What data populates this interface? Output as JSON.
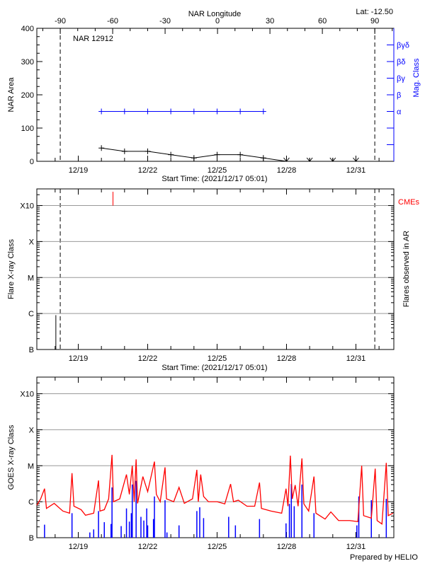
{
  "chart_data": [
    {
      "type": "line",
      "title": "NAR 12912",
      "header_right": "Lat: -12.50",
      "top_xlabel": "NAR Longitude",
      "top_xticks": [
        -90,
        -60,
        -30,
        0,
        30,
        60,
        90
      ],
      "top_xtick_labels": [
        "-90",
        "-60",
        "-30",
        "0",
        "30",
        "60",
        "90"
      ],
      "top_xlim": [
        -103.4,
        100.9
      ],
      "limb_longitudes": [
        -90,
        90
      ],
      "xlabel": "Start Time: (2021/12/17 05:01)",
      "xlim": [
        "2021-12-17T05:01",
        "2022-01-01T15:20"
      ],
      "xticks": [
        "2021-12-19T00:00",
        "2021-12-22T00:00",
        "2021-12-25T00:00",
        "2021-12-28T00:00",
        "2021-12-31T00:00"
      ],
      "xtick_labels": [
        "12/19",
        "12/22",
        "12/25",
        "12/28",
        "12/31"
      ],
      "ylabel": "NAR Area",
      "ylim": [
        0,
        400
      ],
      "yticks": [
        0,
        100,
        200,
        300,
        400
      ],
      "ytick_labels": [
        "0",
        "100",
        "200",
        "300",
        "400"
      ],
      "right_ylabel": "Mag. Class",
      "mag_class_labels": [
        "α",
        "β",
        "βγ",
        "βδ",
        "βγδ"
      ],
      "colors": {
        "area": "#000000",
        "mag_class": "#0000ff",
        "axis_right": "#0000ff"
      },
      "series": [
        {
          "key": "area",
          "points": [
            {
              "t": "2021-12-20T00:00",
              "v": 40
            },
            {
              "t": "2021-12-21T00:00",
              "v": 30
            },
            {
              "t": "2021-12-22T00:00",
              "v": 30
            },
            {
              "t": "2021-12-23T00:00",
              "v": 20
            },
            {
              "t": "2021-12-24T00:00",
              "v": 10
            },
            {
              "t": "2021-12-25T00:00",
              "v": 20
            },
            {
              "t": "2021-12-26T00:00",
              "v": 20
            },
            {
              "t": "2021-12-27T00:00",
              "v": 10
            },
            {
              "t": "2021-12-28T00:00",
              "v": 0
            },
            {
              "t": "2021-12-29T00:00",
              "v": 0
            },
            {
              "t": "2021-12-30T00:00",
              "v": 0
            },
            {
              "t": "2021-12-31T00:00",
              "v": 0
            }
          ]
        },
        {
          "key": "mag_class",
          "points": [
            {
              "t": "2021-12-20T00:00",
              "class": "α"
            },
            {
              "t": "2021-12-21T00:00",
              "class": "α"
            },
            {
              "t": "2021-12-22T00:00",
              "class": "α"
            },
            {
              "t": "2021-12-23T00:00",
              "class": "α"
            },
            {
              "t": "2021-12-24T00:00",
              "class": "α"
            },
            {
              "t": "2021-12-25T00:00",
              "class": "α"
            },
            {
              "t": "2021-12-26T00:00",
              "class": "α"
            },
            {
              "t": "2021-12-27T00:00",
              "class": "α"
            }
          ]
        }
      ]
    },
    {
      "type": "bar",
      "xlabel": "Start Time: (2021/12/17 05:01)",
      "xlim": [
        "2021-12-17T05:01",
        "2022-01-01T15:20"
      ],
      "xtick_labels": [
        "12/19",
        "12/22",
        "12/25",
        "12/28",
        "12/31"
      ],
      "ylabel": "Flare X-ray Class",
      "yscale": "log",
      "ylim": [
        1e-07,
        0.0029
      ],
      "class_levels": [
        1e-07,
        1e-06,
        1e-05,
        0.0001,
        0.001
      ],
      "class_labels": [
        "B",
        "C",
        "M",
        "X",
        "X10"
      ],
      "gridlines": [
        1e-06,
        1e-05,
        0.0001,
        0.001
      ],
      "grid": true,
      "right_ylabel": "Flares observed in AR",
      "legend": {
        "label": "CMEs",
        "placement": "top-right",
        "color": "#ff0000"
      },
      "limb_longitudes": [
        -90,
        90
      ],
      "flares": [
        {
          "t": "2021-12-18T00:45",
          "flux": 9e-07
        }
      ],
      "cmes": [
        {
          "t": "2021-12-20T12:00"
        }
      ]
    },
    {
      "type": "line",
      "xlim": [
        "2021-12-17T05:01",
        "2022-01-01T15:20"
      ],
      "xtick_labels": [
        "12/19",
        "12/22",
        "12/25",
        "12/28",
        "12/31"
      ],
      "ylabel": "GOES X-ray Class",
      "yscale": "log",
      "ylim": [
        1e-07,
        0.0029
      ],
      "class_levels": [
        1e-07,
        1e-06,
        1e-05,
        0.0001,
        0.001
      ],
      "class_labels": [
        "B",
        "C",
        "M",
        "X",
        "X10"
      ],
      "gridlines": [
        1e-06,
        1e-05,
        0.0001,
        0.001
      ],
      "grid": true,
      "colors": {
        "long_channel": "#ff0000",
        "short_channel": "#0000ff"
      },
      "long_channel": [
        [
          "2021-12-17T05:01",
          8e-07
        ],
        [
          "2021-12-17T09:00",
          1.2e-06
        ],
        [
          "2021-12-17T13:00",
          2.3e-06
        ],
        [
          "2021-12-17T15:00",
          6.5e-07
        ],
        [
          "2021-12-17T23:00",
          9e-07
        ],
        [
          "2021-12-18T08:00",
          5.5e-07
        ],
        [
          "2021-12-18T15:00",
          4.8e-07
        ],
        [
          "2021-12-18T17:30",
          6.2e-06
        ],
        [
          "2021-12-18T19:30",
          7.5e-07
        ],
        [
          "2021-12-19T03:00",
          6e-07
        ],
        [
          "2021-12-19T07:30",
          4.2e-07
        ],
        [
          "2021-12-19T16:00",
          4.8e-07
        ],
        [
          "2021-12-19T21:00",
          3.9e-06
        ],
        [
          "2021-12-19T22:30",
          5.5e-07
        ],
        [
          "2021-12-20T03:00",
          6e-07
        ],
        [
          "2021-12-20T07:30",
          1.2e-06
        ],
        [
          "2021-12-20T11:00",
          2e-05
        ],
        [
          "2021-12-20T12:30",
          1e-06
        ],
        [
          "2021-12-20T19:00",
          1.2e-06
        ],
        [
          "2021-12-21T02:00",
          5.7e-06
        ],
        [
          "2021-12-21T05:00",
          1.6e-06
        ],
        [
          "2021-12-21T08:00",
          1e-05
        ],
        [
          "2021-12-21T10:00",
          1e-06
        ],
        [
          "2021-12-21T12:00",
          1.5e-05
        ],
        [
          "2021-12-21T13:30",
          9e-07
        ],
        [
          "2021-12-21T19:00",
          5e-06
        ],
        [
          "2021-12-22T00:00",
          1.9e-06
        ],
        [
          "2021-12-22T07:00",
          1.3e-05
        ],
        [
          "2021-12-22T09:00",
          1.6e-06
        ],
        [
          "2021-12-22T13:00",
          1e-06
        ],
        [
          "2021-12-22T18:00",
          9e-06
        ],
        [
          "2021-12-22T19:30",
          1.2e-06
        ],
        [
          "2021-12-23T03:00",
          1e-06
        ],
        [
          "2021-12-23T08:30",
          2.5e-06
        ],
        [
          "2021-12-23T14:00",
          9e-07
        ],
        [
          "2021-12-23T22:30",
          1.2e-06
        ],
        [
          "2021-12-24T03:00",
          7.7e-06
        ],
        [
          "2021-12-24T04:30",
          1e-06
        ],
        [
          "2021-12-24T07:00",
          5.7e-06
        ],
        [
          "2021-12-24T10:00",
          1.4e-06
        ],
        [
          "2021-12-24T15:00",
          1e-06
        ],
        [
          "2021-12-25T00:00",
          1e-06
        ],
        [
          "2021-12-25T08:00",
          8.7e-07
        ],
        [
          "2021-12-25T14:00",
          3.1e-06
        ],
        [
          "2021-12-25T17:00",
          1e-06
        ],
        [
          "2021-12-25T22:00",
          1.1e-06
        ],
        [
          "2021-12-26T07:00",
          7.5e-07
        ],
        [
          "2021-12-26T15:00",
          7.5e-07
        ],
        [
          "2021-12-26T20:00",
          3.4e-06
        ],
        [
          "2021-12-26T22:00",
          6.5e-07
        ],
        [
          "2021-12-27T08:00",
          5.5e-07
        ],
        [
          "2021-12-27T19:00",
          4.8e-07
        ],
        [
          "2021-12-27T23:30",
          2.3e-06
        ],
        [
          "2021-12-28T01:30",
          7.5e-07
        ],
        [
          "2021-12-28T04:00",
          1.9e-05
        ],
        [
          "2021-12-28T06:00",
          1.2e-06
        ],
        [
          "2021-12-28T09:00",
          2.9e-06
        ],
        [
          "2021-12-28T12:00",
          7.5e-07
        ],
        [
          "2021-12-28T16:00",
          1.6e-05
        ],
        [
          "2021-12-28T18:00",
          8.7e-07
        ],
        [
          "2021-12-28T23:00",
          5.5e-07
        ],
        [
          "2021-12-29T04:30",
          5e-06
        ],
        [
          "2021-12-29T06:30",
          4.8e-07
        ],
        [
          "2021-12-29T16:00",
          3.3e-07
        ],
        [
          "2021-12-29T22:00",
          5.2e-07
        ],
        [
          "2021-12-30T06:00",
          3e-07
        ],
        [
          "2021-12-30T17:30",
          3e-07
        ],
        [
          "2021-12-31T02:00",
          2.8e-07
        ],
        [
          "2021-12-31T06:00",
          1e-05
        ],
        [
          "2021-12-31T08:00",
          4.1e-07
        ],
        [
          "2021-12-31T16:00",
          3.5e-07
        ],
        [
          "2021-12-31T20:00",
          8.3e-06
        ],
        [
          "2021-12-31T22:00",
          3e-07
        ],
        [
          "2022-01-01T03:00",
          2.4e-07
        ],
        [
          "2022-01-01T07:30",
          1.2e-05
        ],
        [
          "2022-01-01T09:30",
          4.1e-07
        ],
        [
          "2022-01-01T14:30",
          4.8e-07
        ]
      ],
      "short_channel": [
        [
          "2021-12-17T13:00",
          2.3e-07
        ],
        [
          "2021-12-18T17:30",
          4.8e-07
        ],
        [
          "2021-12-19T12:00",
          1.4e-07
        ],
        [
          "2021-12-19T16:00",
          1.7e-07
        ],
        [
          "2021-12-19T21:00",
          5.5e-07
        ],
        [
          "2021-12-20T03:00",
          2.7e-07
        ],
        [
          "2021-12-20T10:00",
          2.4e-07
        ],
        [
          "2021-12-20T11:00",
          2.5e-06
        ],
        [
          "2021-12-20T20:30",
          2.1e-07
        ],
        [
          "2021-12-21T02:00",
          6.5e-07
        ],
        [
          "2021-12-21T05:00",
          2.8e-07
        ],
        [
          "2021-12-21T07:00",
          4.8e-07
        ],
        [
          "2021-12-21T08:00",
          3e-06
        ],
        [
          "2021-12-21T12:00",
          3.8e-06
        ],
        [
          "2021-12-21T17:00",
          3.8e-07
        ],
        [
          "2021-12-21T20:00",
          3e-07
        ],
        [
          "2021-12-21T23:00",
          6.5e-07
        ],
        [
          "2021-12-22T00:00",
          2.2e-07
        ],
        [
          "2021-12-22T06:00",
          3.3e-07
        ],
        [
          "2021-12-22T07:00",
          1.4e-06
        ],
        [
          "2021-12-22T18:00",
          1.1e-06
        ],
        [
          "2021-12-22T20:00",
          1.4e-07
        ],
        [
          "2021-12-23T08:30",
          2.2e-07
        ],
        [
          "2021-12-24T03:00",
          5.5e-07
        ],
        [
          "2021-12-24T06:00",
          7e-07
        ],
        [
          "2021-12-24T10:00",
          3.5e-07
        ],
        [
          "2021-12-25T12:00",
          3.8e-07
        ],
        [
          "2021-12-25T19:00",
          2.2e-07
        ],
        [
          "2021-12-26T20:00",
          3.3e-07
        ],
        [
          "2021-12-27T23:30",
          2.5e-07
        ],
        [
          "2021-12-28T03:00",
          8.7e-07
        ],
        [
          "2021-12-28T05:00",
          3.1e-06
        ],
        [
          "2021-12-28T08:00",
          7.5e-07
        ],
        [
          "2021-12-28T16:00",
          3e-06
        ],
        [
          "2021-12-29T04:30",
          4.8e-07
        ],
        [
          "2021-12-31T01:00",
          2.2e-07
        ],
        [
          "2021-12-31T03:00",
          1.4e-06
        ],
        [
          "2021-12-31T16:00",
          1.1e-06
        ],
        [
          "2022-01-01T07:30",
          1.2e-06
        ]
      ]
    }
  ],
  "footer": "Prepared by HELIO"
}
